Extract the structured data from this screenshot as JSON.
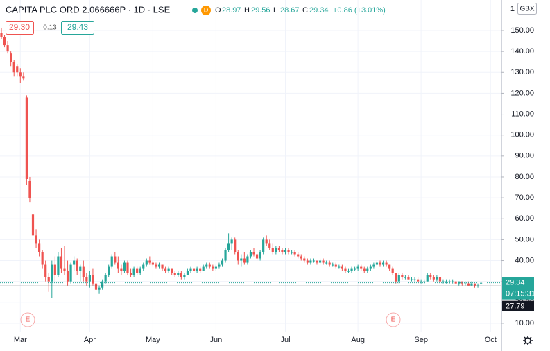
{
  "header": {
    "title": "CAPITA PLC ORD 2.066666P · 1D · LSE",
    "badge": "D",
    "ohlc": [
      {
        "label": "O",
        "value": "28.97"
      },
      {
        "label": "H",
        "value": "29.56"
      },
      {
        "label": "L",
        "value": "28.67"
      },
      {
        "label": "C",
        "value": "29.34"
      }
    ],
    "change": "+0.86 (+3.01%)",
    "bid": "29.30",
    "spread": "0.13",
    "ask": "29.43"
  },
  "axis_header": {
    "scale": "1",
    "currency": "GBX"
  },
  "chart_data": {
    "type": "candlestick",
    "up_color": "#26a69a",
    "down_color": "#ef5350",
    "grid": true,
    "categories": [
      null,
      null,
      null,
      null,
      null,
      null,
      "Mar",
      null,
      null,
      null,
      null,
      null,
      null,
      null,
      null,
      null,
      null,
      null,
      null,
      null,
      null,
      null,
      null,
      null,
      null,
      null,
      null,
      null,
      "Apr",
      null,
      null,
      null,
      null,
      null,
      null,
      null,
      null,
      null,
      null,
      null,
      null,
      null,
      null,
      null,
      null,
      null,
      null,
      null,
      "May",
      null,
      null,
      null,
      null,
      null,
      null,
      null,
      null,
      null,
      null,
      null,
      null,
      null,
      null,
      null,
      null,
      null,
      null,
      null,
      "Jun",
      null,
      null,
      null,
      null,
      null,
      null,
      null,
      null,
      null,
      null,
      null,
      null,
      null,
      null,
      null,
      null,
      null,
      null,
      null,
      null,
      null,
      "Jul",
      null,
      null,
      null,
      null,
      null,
      null,
      null,
      null,
      null,
      null,
      null,
      null,
      null,
      null,
      null,
      null,
      null,
      null,
      null,
      null,
      null,
      null,
      "Aug",
      null,
      null,
      null,
      null,
      null,
      null,
      null,
      null,
      null,
      null,
      null,
      null,
      null,
      null,
      null,
      null,
      null,
      null,
      null,
      "Sep",
      null,
      null,
      null,
      null,
      null,
      null,
      null,
      null,
      null,
      null,
      null,
      null,
      null,
      null,
      null,
      null,
      null,
      null,
      null,
      null,
      null,
      "Oct"
    ],
    "ohlc": [
      [
        149,
        151,
        146,
        147
      ],
      [
        147,
        148,
        142,
        143
      ],
      [
        143,
        145,
        139,
        140
      ],
      [
        139,
        140,
        133,
        135
      ],
      [
        135,
        136,
        128,
        130
      ],
      [
        133,
        134,
        128,
        130
      ],
      [
        130,
        132,
        125,
        128
      ],
      [
        128,
        130,
        126,
        127
      ],
      [
        118,
        119,
        76,
        79
      ],
      [
        78,
        80,
        68,
        70
      ],
      [
        62,
        64,
        50,
        52
      ],
      [
        52,
        55,
        46,
        48
      ],
      [
        48,
        50,
        42,
        44
      ],
      [
        44,
        45,
        36,
        38
      ],
      [
        38,
        40,
        30,
        32
      ],
      [
        32,
        34,
        25,
        30
      ],
      [
        30,
        40,
        22,
        38
      ],
      [
        38,
        42,
        30,
        33
      ],
      [
        33,
        44,
        32,
        42
      ],
      [
        42,
        46,
        34,
        36
      ],
      [
        36,
        47,
        33,
        35
      ],
      [
        35,
        40,
        28,
        30
      ],
      [
        30,
        39,
        29,
        38
      ],
      [
        38,
        42,
        35,
        40
      ],
      [
        40,
        41,
        33,
        35
      ],
      [
        35,
        38,
        30,
        37
      ],
      [
        37,
        40,
        30,
        32
      ],
      [
        32,
        34,
        28,
        30
      ],
      [
        30,
        35,
        27,
        33
      ],
      [
        33,
        36,
        28,
        29
      ],
      [
        29,
        30,
        25,
        26
      ],
      [
        26,
        28,
        24,
        27
      ],
      [
        27,
        31,
        26,
        30
      ],
      [
        30,
        34,
        29,
        33
      ],
      [
        33,
        38,
        32,
        37
      ],
      [
        37,
        43,
        36,
        42
      ],
      [
        42,
        44,
        38,
        39
      ],
      [
        39,
        42,
        34,
        36
      ],
      [
        36,
        38,
        33,
        35
      ],
      [
        35,
        40,
        34,
        39
      ],
      [
        39,
        40,
        33,
        34
      ],
      [
        34,
        36,
        32,
        33
      ],
      [
        33,
        37,
        32,
        36
      ],
      [
        36,
        37,
        33,
        34
      ],
      [
        34,
        37,
        33,
        36
      ],
      [
        36,
        39,
        35,
        38
      ],
      [
        38,
        41,
        37,
        40
      ],
      [
        40,
        42,
        38,
        39
      ],
      [
        39,
        40,
        37,
        38
      ],
      [
        38,
        39,
        36,
        37
      ],
      [
        37,
        39,
        36,
        38
      ],
      [
        38,
        38,
        35,
        36
      ],
      [
        36,
        37,
        34,
        35
      ],
      [
        35,
        37,
        34,
        36
      ],
      [
        36,
        36,
        33,
        34
      ],
      [
        34,
        35,
        32,
        33
      ],
      [
        33,
        35,
        32,
        34
      ],
      [
        34,
        35,
        31,
        32
      ],
      [
        32,
        34,
        31,
        33
      ],
      [
        33,
        36,
        33,
        35
      ],
      [
        35,
        37,
        34,
        36
      ],
      [
        36,
        36,
        34,
        35
      ],
      [
        35,
        37,
        34,
        36
      ],
      [
        36,
        37,
        34,
        35
      ],
      [
        35,
        38,
        35,
        37
      ],
      [
        37,
        39,
        36,
        38
      ],
      [
        38,
        39,
        36,
        37
      ],
      [
        37,
        38,
        35,
        36
      ],
      [
        36,
        38,
        35,
        37
      ],
      [
        37,
        39,
        36,
        38
      ],
      [
        38,
        41,
        37,
        40
      ],
      [
        40,
        46,
        39,
        45
      ],
      [
        45,
        53,
        44,
        48
      ],
      [
        48,
        51,
        45,
        50
      ],
      [
        50,
        51,
        43,
        44
      ],
      [
        44,
        45,
        38,
        40
      ],
      [
        40,
        43,
        37,
        41
      ],
      [
        41,
        44,
        38,
        39
      ],
      [
        39,
        43,
        38,
        42
      ],
      [
        42,
        45,
        41,
        44
      ],
      [
        44,
        46,
        42,
        43
      ],
      [
        43,
        44,
        40,
        41
      ],
      [
        41,
        45,
        40,
        44
      ],
      [
        44,
        51,
        43,
        50
      ],
      [
        50,
        52,
        47,
        48
      ],
      [
        48,
        50,
        45,
        46
      ],
      [
        46,
        48,
        43,
        44
      ],
      [
        44,
        47,
        43,
        46
      ],
      [
        46,
        47,
        44,
        45
      ],
      [
        45,
        46,
        43,
        44
      ],
      [
        44,
        46,
        43,
        45
      ],
      [
        45,
        46,
        43,
        44
      ],
      [
        44,
        45,
        43,
        44
      ],
      [
        44,
        45,
        42,
        43
      ],
      [
        43,
        44,
        41,
        42
      ],
      [
        42,
        43,
        40,
        41
      ],
      [
        41,
        42,
        39,
        40
      ],
      [
        40,
        41,
        38,
        39
      ],
      [
        39,
        41,
        38,
        40
      ],
      [
        40,
        41,
        39,
        40
      ],
      [
        40,
        40,
        38,
        39
      ],
      [
        39,
        41,
        38,
        40
      ],
      [
        40,
        41,
        38,
        39
      ],
      [
        39,
        40,
        38,
        39
      ],
      [
        39,
        40,
        37,
        38
      ],
      [
        38,
        39,
        37,
        38
      ],
      [
        38,
        39,
        36,
        37
      ],
      [
        37,
        38,
        36,
        37
      ],
      [
        37,
        38,
        35,
        36
      ],
      [
        36,
        37,
        34,
        35
      ],
      [
        35,
        36,
        34,
        35
      ],
      [
        35,
        37,
        34,
        36
      ],
      [
        36,
        37,
        35,
        36
      ],
      [
        36,
        38,
        35,
        37
      ],
      [
        37,
        38,
        35,
        36
      ],
      [
        36,
        37,
        34,
        35
      ],
      [
        35,
        37,
        34,
        36
      ],
      [
        36,
        38,
        35,
        37
      ],
      [
        37,
        39,
        36,
        38
      ],
      [
        38,
        40,
        37,
        39
      ],
      [
        39,
        40,
        37,
        38
      ],
      [
        38,
        40,
        37,
        39
      ],
      [
        39,
        40,
        37,
        38
      ],
      [
        38,
        38,
        35,
        36
      ],
      [
        36,
        37,
        33,
        34
      ],
      [
        34,
        34,
        29,
        30
      ],
      [
        30,
        34,
        29,
        33
      ],
      [
        33,
        34,
        31,
        32
      ],
      [
        32,
        33,
        31,
        32
      ],
      [
        32,
        33,
        31,
        31
      ],
      [
        31,
        32,
        30,
        31
      ],
      [
        31,
        32,
        30,
        31
      ],
      [
        31,
        32,
        29,
        30
      ],
      [
        30,
        31,
        29,
        30
      ],
      [
        30,
        31,
        29,
        30
      ],
      [
        30,
        34,
        30,
        33
      ],
      [
        33,
        34,
        31,
        32
      ],
      [
        32,
        33,
        30,
        31
      ],
      [
        31,
        33,
        30,
        32
      ],
      [
        32,
        32,
        29,
        30
      ],
      [
        30,
        31,
        29,
        30
      ],
      [
        30,
        31,
        29,
        30
      ],
      [
        30,
        31,
        29,
        30
      ],
      [
        30,
        31,
        29,
        30
      ],
      [
        30,
        30,
        29,
        29
      ],
      [
        29,
        30,
        28,
        30
      ],
      [
        30,
        30,
        28,
        29
      ],
      [
        29,
        30,
        28,
        29
      ],
      [
        29,
        30,
        28,
        28
      ],
      [
        28,
        30,
        28,
        29
      ],
      [
        29,
        29,
        27,
        28
      ],
      [
        28,
        29,
        27,
        28
      ],
      [
        28.97,
        29.56,
        28.67,
        29.34
      ],
      null,
      null,
      null
    ],
    "ylim": [
      6,
      164.6
    ],
    "yticks": [
      {
        "value": 10,
        "label": "10.00"
      },
      {
        "value": 20,
        "label": "20.00"
      },
      {
        "value": 30,
        "label": "30.00"
      },
      {
        "value": 40,
        "label": "40.00"
      },
      {
        "value": 50,
        "label": "50.00"
      },
      {
        "value": 60,
        "label": "60.00"
      },
      {
        "value": 70,
        "label": "70.00"
      },
      {
        "value": 80,
        "label": "80.00"
      },
      {
        "value": 90,
        "label": "90.00"
      },
      {
        "value": 100,
        "label": "100.00"
      },
      {
        "value": 110,
        "label": "110.00"
      },
      {
        "value": 120,
        "label": "120.00"
      },
      {
        "value": 130,
        "label": "130.00"
      },
      {
        "value": 140,
        "label": "140.00"
      },
      {
        "value": 150,
        "label": "150.00"
      }
    ],
    "last_price": 29.34,
    "countdown": "07:15:31",
    "reference_price": 27.79,
    "earnings_markers": [
      "E",
      "E"
    ]
  }
}
